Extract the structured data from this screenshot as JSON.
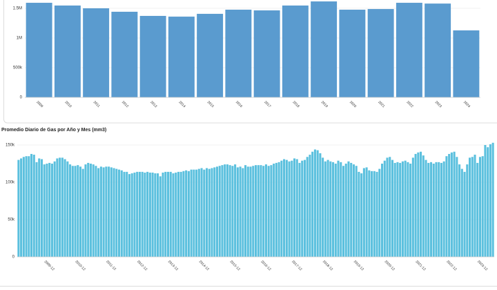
{
  "chart_data": [
    {
      "type": "bar",
      "categories": [
        "2009",
        "2010",
        "2011",
        "2012",
        "2013",
        "2014",
        "2015",
        "2016",
        "2017",
        "2018",
        "2019",
        "2020",
        "2021",
        "2022",
        "2023",
        "2024"
      ],
      "values": [
        1593000,
        1547000,
        1500000,
        1442000,
        1372000,
        1360000,
        1407000,
        1477000,
        1465000,
        1547000,
        1616000,
        1477000,
        1488000,
        1593000,
        1580000,
        1128000
      ],
      "color": "#5a9bcf",
      "ylim": [
        0,
        1640000
      ],
      "yticks": [
        0,
        {
          "value": 500000,
          "label": "500k"
        },
        {
          "value": 1000000,
          "label": "1M"
        },
        {
          "value": 1500000,
          "label": "1.5M"
        }
      ],
      "grid": true
    },
    {
      "type": "bar",
      "title": "Promedio Diario de Gas por Año y Mes (mm3)",
      "categories": [
        null,
        null,
        null,
        null,
        null,
        null,
        null,
        null,
        null,
        null,
        null,
        "2009-12",
        null,
        null,
        null,
        null,
        null,
        null,
        null,
        null,
        null,
        null,
        null,
        "2010-12",
        null,
        null,
        null,
        null,
        null,
        null,
        null,
        null,
        null,
        null,
        null,
        "2011-12",
        null,
        null,
        null,
        null,
        null,
        null,
        null,
        null,
        null,
        null,
        null,
        "2012-12",
        null,
        null,
        null,
        null,
        null,
        null,
        null,
        null,
        null,
        null,
        null,
        "2013-12",
        null,
        null,
        null,
        null,
        null,
        null,
        null,
        null,
        null,
        null,
        null,
        "2014-12",
        null,
        null,
        null,
        null,
        null,
        null,
        null,
        null,
        null,
        null,
        null,
        "2015-12",
        null,
        null,
        null,
        null,
        null,
        null,
        null,
        null,
        null,
        null,
        null,
        "2016-12",
        null,
        null,
        null,
        null,
        null,
        null,
        null,
        null,
        null,
        null,
        null,
        "2017-12",
        null,
        null,
        null,
        null,
        null,
        null,
        null,
        null,
        null,
        null,
        null,
        "2018-12",
        null,
        null,
        null,
        null,
        null,
        null,
        null,
        null,
        null,
        null,
        null,
        "2019-12",
        null,
        null,
        null,
        null,
        null,
        null,
        null,
        null,
        null,
        null,
        null,
        "2020-12",
        null,
        null,
        null,
        null,
        null,
        null,
        null,
        null,
        null,
        null,
        null,
        "2021-12",
        null,
        null,
        null,
        null,
        null,
        null,
        null,
        null,
        null,
        null,
        null,
        "2022-12",
        null,
        null,
        null,
        null,
        null,
        null,
        null,
        null,
        null,
        null,
        null,
        "2023-12",
        null,
        null,
        null,
        null,
        null
      ],
      "values": [
        130000,
        132000,
        134000,
        135000,
        135000,
        138000,
        137000,
        127000,
        132000,
        131000,
        124000,
        125000,
        126000,
        125000,
        128000,
        132000,
        133000,
        133000,
        131000,
        128000,
        124000,
        122000,
        122000,
        123000,
        121000,
        118000,
        124000,
        126000,
        125000,
        124000,
        122000,
        119000,
        121000,
        120000,
        121000,
        121000,
        120000,
        119000,
        118000,
        117000,
        116000,
        114000,
        114000,
        111000,
        112000,
        113000,
        114000,
        114000,
        114000,
        113000,
        114000,
        113000,
        113000,
        112000,
        112000,
        108000,
        113000,
        114000,
        114000,
        114000,
        112000,
        113000,
        114000,
        114000,
        115000,
        116000,
        115000,
        117000,
        117000,
        117000,
        118000,
        119000,
        117000,
        119000,
        118000,
        119000,
        120000,
        121000,
        122000,
        123000,
        124000,
        124000,
        123000,
        122000,
        124000,
        120000,
        121000,
        119000,
        123000,
        121000,
        121000,
        122000,
        123000,
        123000,
        123000,
        122000,
        124000,
        122000,
        123000,
        125000,
        126000,
        127000,
        129000,
        131000,
        130000,
        128000,
        129000,
        132000,
        131000,
        126000,
        129000,
        130000,
        134000,
        137000,
        141000,
        144000,
        143000,
        139000,
        133000,
        128000,
        130000,
        128000,
        127000,
        125000,
        129000,
        127000,
        122000,
        125000,
        128000,
        126000,
        124000,
        122000,
        114000,
        112000,
        119000,
        120000,
        116000,
        115000,
        115000,
        114000,
        118000,
        125000,
        129000,
        133000,
        134000,
        130000,
        126000,
        127000,
        126000,
        128000,
        129000,
        127000,
        125000,
        133000,
        138000,
        140000,
        141000,
        136000,
        130000,
        126000,
        127000,
        125000,
        127000,
        127000,
        126000,
        128000,
        135000,
        138000,
        140000,
        141000,
        134000,
        124000,
        118000,
        114000,
        124000,
        133000,
        134000,
        137000,
        126000,
        134000,
        135000,
        150000,
        147000,
        151000,
        153000
      ],
      "color": "#5bc0de",
      "ylim": [
        0,
        155000
      ],
      "yticks": [
        0,
        {
          "value": 50000,
          "label": "50k"
        },
        {
          "value": 100000,
          "label": "100k"
        },
        {
          "value": 150000,
          "label": "150k"
        }
      ],
      "grid": true
    }
  ]
}
